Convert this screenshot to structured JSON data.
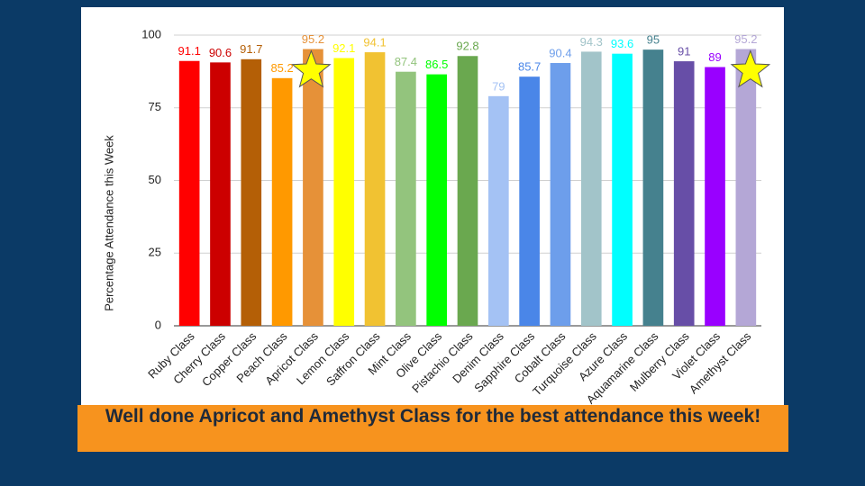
{
  "chart_data": {
    "type": "bar",
    "y_label": "Percentage Attendance this Week",
    "categories": [
      "Ruby Class",
      "Cherry Class",
      "Copper Class",
      "Peach Class",
      "Apricot Class",
      "Lemon Class",
      "Saffron Class",
      "Mint Class",
      "Olive Class",
      "Pistachio Class",
      "Denim Class",
      "Sapphire Class",
      "Cobalt Class",
      "Turquoise Class",
      "Azure Class",
      "Aquamarine Class",
      "Mulberry Class",
      "Violet Class",
      "Amethyst Class"
    ],
    "values": [
      91.1,
      90.6,
      91.7,
      85.2,
      95.2,
      92.1,
      94.1,
      87.4,
      86.5,
      92.8,
      79,
      85.7,
      90.4,
      94.3,
      93.6,
      95,
      91,
      89,
      95.2
    ],
    "colors": [
      "#ff0000",
      "#cc0000",
      "#b45f06",
      "#ff9900",
      "#e69138",
      "#ffff00",
      "#f1c232",
      "#93c47d",
      "#00ff00",
      "#6aa84f",
      "#a4c2f4",
      "#4a86e8",
      "#6d9eeb",
      "#a2c4c9",
      "#00ffff",
      "#45818e",
      "#674ea7",
      "#9900ff",
      "#b4a7d6"
    ],
    "ylim": [
      0,
      100
    ],
    "yticks": [
      0,
      25,
      50,
      75,
      100
    ],
    "grid": true
  },
  "banner": {
    "text": "Well done Apricot and Amethyst Class for the best attendance this week!"
  }
}
